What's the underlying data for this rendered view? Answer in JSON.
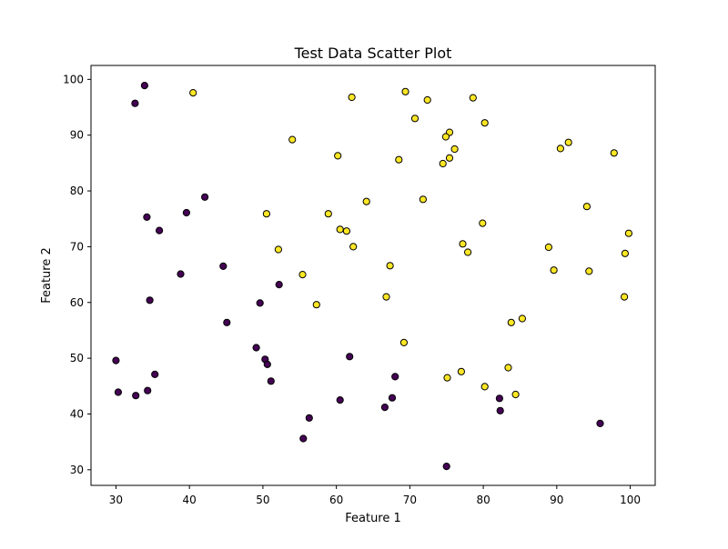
{
  "chart_data": {
    "type": "scatter",
    "title": "Test Data Scatter Plot",
    "xlabel": "Feature 1",
    "ylabel": "Feature 2",
    "xlim": [
      26.6,
      103.4
    ],
    "ylim": [
      27.2,
      102.5
    ],
    "xticks": [
      30,
      40,
      50,
      60,
      70,
      80,
      90,
      100
    ],
    "yticks": [
      30,
      40,
      50,
      60,
      70,
      80,
      90,
      100
    ],
    "grid": false,
    "colors": {
      "class_0": "#440154",
      "class_1": "#fde725",
      "edge": "#000000"
    },
    "series": [
      {
        "values": [
          [
            33.9,
            98.9
          ],
          [
            32.6,
            95.7
          ],
          [
            42.1,
            78.9
          ],
          [
            39.6,
            76.1
          ],
          [
            34.2,
            75.3
          ],
          [
            35.9,
            72.9
          ],
          [
            44.6,
            66.5
          ],
          [
            38.8,
            65.1
          ],
          [
            52.2,
            63.2
          ],
          [
            34.6,
            60.4
          ],
          [
            49.6,
            59.9
          ],
          [
            45.1,
            56.4
          ],
          [
            49.1,
            51.9
          ],
          [
            50.3,
            49.8
          ],
          [
            50.6,
            48.9
          ],
          [
            61.8,
            50.3
          ],
          [
            30.0,
            49.6
          ],
          [
            35.3,
            47.1
          ],
          [
            51.1,
            45.9
          ],
          [
            68.0,
            46.7
          ],
          [
            30.3,
            43.9
          ],
          [
            32.7,
            43.3
          ],
          [
            34.3,
            44.2
          ],
          [
            60.5,
            42.5
          ],
          [
            67.6,
            42.9
          ],
          [
            66.6,
            41.2
          ],
          [
            82.2,
            42.8
          ],
          [
            82.3,
            40.6
          ],
          [
            56.3,
            39.3
          ],
          [
            95.9,
            38.3
          ],
          [
            55.5,
            35.6
          ],
          [
            75.0,
            30.6
          ]
        ]
      },
      {
        "values": [
          [
            40.5,
            97.6
          ],
          [
            62.1,
            96.8
          ],
          [
            69.4,
            97.8
          ],
          [
            72.4,
            96.3
          ],
          [
            78.6,
            96.7
          ],
          [
            70.7,
            93.0
          ],
          [
            80.2,
            92.2
          ],
          [
            75.4,
            90.5
          ],
          [
            74.9,
            89.7
          ],
          [
            54.0,
            89.2
          ],
          [
            76.1,
            87.5
          ],
          [
            91.6,
            88.7
          ],
          [
            90.5,
            87.6
          ],
          [
            97.8,
            86.8
          ],
          [
            60.2,
            86.3
          ],
          [
            68.5,
            85.6
          ],
          [
            75.4,
            85.9
          ],
          [
            74.5,
            84.9
          ],
          [
            64.1,
            78.1
          ],
          [
            71.8,
            78.5
          ],
          [
            94.1,
            77.2
          ],
          [
            50.5,
            75.9
          ],
          [
            58.9,
            75.9
          ],
          [
            79.9,
            74.2
          ],
          [
            60.5,
            73.1
          ],
          [
            61.4,
            72.8
          ],
          [
            99.8,
            72.4
          ],
          [
            77.2,
            70.5
          ],
          [
            88.9,
            69.9
          ],
          [
            52.1,
            69.5
          ],
          [
            62.3,
            70.0
          ],
          [
            77.9,
            69.0
          ],
          [
            99.3,
            68.8
          ],
          [
            67.3,
            66.6
          ],
          [
            89.6,
            65.8
          ],
          [
            94.4,
            65.6
          ],
          [
            55.4,
            65.0
          ],
          [
            66.8,
            61.0
          ],
          [
            99.2,
            61.0
          ],
          [
            57.3,
            59.6
          ],
          [
            85.3,
            57.1
          ],
          [
            83.8,
            56.4
          ],
          [
            69.2,
            52.8
          ],
          [
            83.4,
            48.3
          ],
          [
            77.0,
            47.6
          ],
          [
            75.1,
            46.5
          ],
          [
            80.2,
            44.9
          ],
          [
            84.4,
            43.5
          ]
        ]
      }
    ]
  }
}
